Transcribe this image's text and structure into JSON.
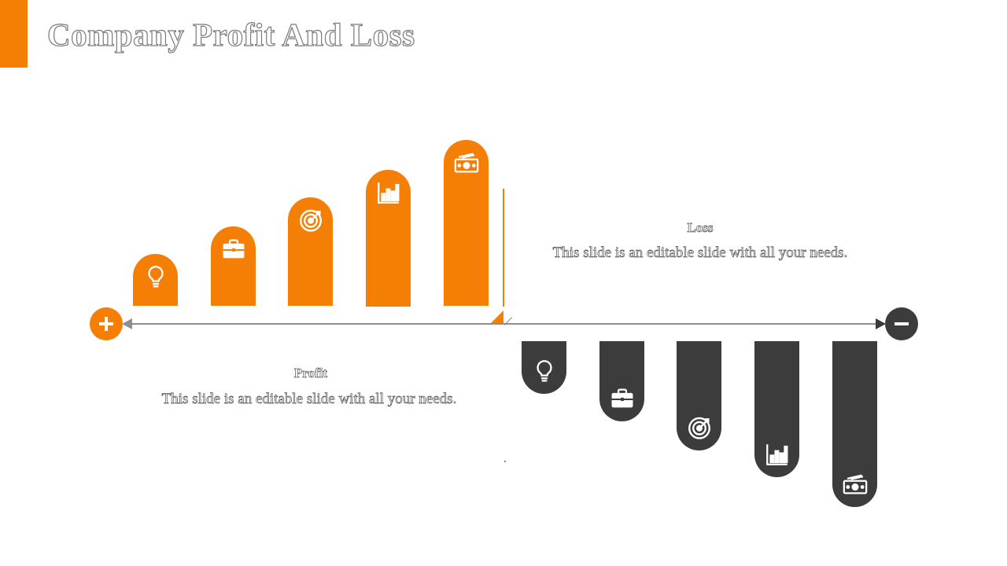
{
  "title": "Company Profit And Loss",
  "profit": {
    "label": "Profit",
    "description": "This slide is an editable slide with all your needs."
  },
  "loss": {
    "label": "Loss",
    "description": "This slide is an editable slide with all your needs."
  },
  "colors": {
    "accent": "#F57F05",
    "dark": "#3C3C3C",
    "axis": "#8B9096"
  },
  "icons": {
    "profit_bars": [
      "lightbulb-icon",
      "briefcase-icon",
      "target-icon",
      "bar-chart-icon",
      "money-icon"
    ],
    "loss_bars": [
      "lightbulb-icon",
      "briefcase-icon",
      "target-icon",
      "bar-chart-icon",
      "money-icon"
    ],
    "axis_start": "plus-icon",
    "axis_end": "minus-icon"
  }
}
